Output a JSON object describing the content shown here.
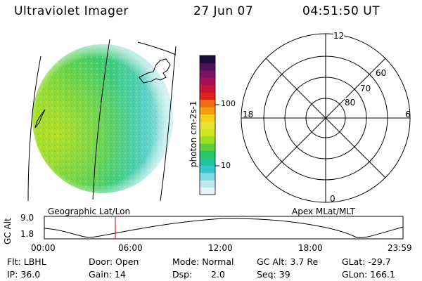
{
  "header": {
    "title": "Ultraviolet Imager",
    "date": "27 Jun 07",
    "time": "04:51:50 UT"
  },
  "colorbar": {
    "label": "photon cm-2s-1",
    "ticks": [
      "100",
      "10"
    ],
    "colors": [
      "#e8f4f7",
      "#bfe9ef",
      "#7fd9e2",
      "#35c7cc",
      "#20c49a",
      "#27c66b",
      "#5ad13c",
      "#9ede22",
      "#cbe61a",
      "#e8e23a",
      "#f1d016",
      "#f59b0e",
      "#f26a12",
      "#e0201c",
      "#c8123e",
      "#a61057",
      "#7b1266",
      "#4a135a",
      "#1a0d38"
    ]
  },
  "polar": {
    "labels": {
      "top": "12",
      "left": "18",
      "right": "6",
      "bottom": "0"
    },
    "rings": [
      "60",
      "70",
      "80"
    ]
  },
  "orbit_panel": {
    "left_title": "Geographic Lat/Lon",
    "right_title": "Apex MLat/MLT",
    "ylabel": "GC Alt",
    "y_ticks": [
      "9.0",
      "1.8"
    ],
    "x_ticks": [
      "00:00",
      "06:00",
      "12:00",
      "18:00",
      "23:59"
    ],
    "marker_color": "#d62020"
  },
  "info": {
    "flt": "Flt: LBHL",
    "ip": "IP: 36.0",
    "door": "Door: Open",
    "gain": "Gain: 14",
    "mode": "Mode: Normal",
    "dsp_label": "Dsp:",
    "dsp_value": "2.0",
    "gcalt": "GC Alt: 3.7 Re",
    "seq": "Seq: 39",
    "glat": "GLat: -29.7",
    "glon": "GLon: 166.1"
  }
}
